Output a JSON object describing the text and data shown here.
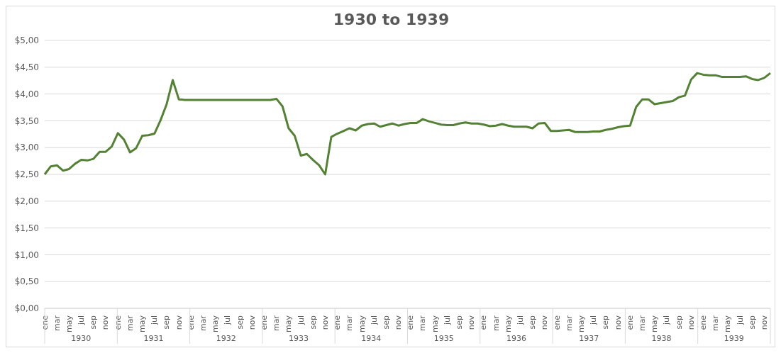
{
  "chart_data": {
    "type": "line",
    "title": "1930 to 1939",
    "categories": [
      "ene",
      null,
      "mar",
      null,
      "may",
      null,
      "jul",
      null,
      "sep",
      null,
      "nov",
      null,
      "ene",
      null,
      "mar",
      null,
      "may",
      null,
      "jul",
      null,
      "sep",
      null,
      "nov",
      null,
      "ene",
      null,
      "mar",
      null,
      "may",
      null,
      "jul",
      null,
      "sep",
      null,
      "nov",
      null,
      "ene",
      null,
      "mar",
      null,
      "may",
      null,
      "jul",
      null,
      "sep",
      null,
      "nov",
      null,
      "ene",
      null,
      "mar",
      null,
      "may",
      null,
      "jul",
      null,
      "sep",
      null,
      "nov",
      null,
      "ene",
      null,
      "mar",
      null,
      "may",
      null,
      "jul",
      null,
      "sep",
      null,
      "nov",
      null,
      "ene",
      null,
      "mar",
      null,
      "may",
      null,
      "jul",
      null,
      "sep",
      null,
      "nov",
      null,
      "ene",
      null,
      "mar",
      null,
      "may",
      null,
      "jul",
      null,
      "sep",
      null,
      "nov",
      null,
      "ene",
      null,
      "mar",
      null,
      "may",
      null,
      "jul",
      null,
      "sep",
      null,
      "nov",
      null,
      "ene",
      null,
      "mar",
      null,
      "may",
      null,
      "jul",
      null,
      "sep",
      null,
      "nov",
      null
    ],
    "series": [
      {
        "color": "#548235",
        "values": [
          2.5,
          2.65,
          2.67,
          2.57,
          2.6,
          2.7,
          2.77,
          2.76,
          2.79,
          2.92,
          2.92,
          3.02,
          3.27,
          3.15,
          2.91,
          2.99,
          3.22,
          3.23,
          3.26,
          3.51,
          3.81,
          4.26,
          3.9,
          3.89,
          3.89,
          3.89,
          3.89,
          3.89,
          3.89,
          3.89,
          3.89,
          3.89,
          3.89,
          3.89,
          3.89,
          3.89,
          3.89,
          3.89,
          3.91,
          3.77,
          3.36,
          3.22,
          2.85,
          2.88,
          2.77,
          2.67,
          2.5,
          3.2,
          3.26,
          3.31,
          3.36,
          3.32,
          3.41,
          3.44,
          3.45,
          3.39,
          3.42,
          3.45,
          3.41,
          3.44,
          3.46,
          3.46,
          3.53,
          3.49,
          3.46,
          3.43,
          3.42,
          3.42,
          3.45,
          3.47,
          3.45,
          3.45,
          3.43,
          3.4,
          3.41,
          3.44,
          3.41,
          3.39,
          3.39,
          3.39,
          3.36,
          3.45,
          3.46,
          3.31,
          3.31,
          3.32,
          3.33,
          3.29,
          3.29,
          3.29,
          3.3,
          3.3,
          3.33,
          3.35,
          3.38,
          3.4,
          3.41,
          3.76,
          3.9,
          3.9,
          3.81,
          3.83,
          3.85,
          3.87,
          3.94,
          3.97,
          4.27,
          4.39,
          4.36,
          4.35,
          4.35,
          4.32,
          4.32,
          4.32,
          4.32,
          4.33,
          4.28,
          4.26,
          4.3,
          4.39
        ]
      }
    ],
    "ylim": [
      0,
      5
    ],
    "yticks": [
      {
        "value": 0,
        "label": "$0,00"
      },
      {
        "value": 0.5,
        "label": "$0,50"
      },
      {
        "value": 1,
        "label": "$1,00"
      },
      {
        "value": 1.5,
        "label": "$1,50"
      },
      {
        "value": 2,
        "label": "$2,00"
      },
      {
        "value": 2.5,
        "label": "$2,50"
      },
      {
        "value": 3,
        "label": "$3,00"
      },
      {
        "value": 3.5,
        "label": "$3,50"
      },
      {
        "value": 4,
        "label": "$4,00"
      },
      {
        "value": 4.5,
        "label": "$4,50"
      },
      {
        "value": 5,
        "label": "$5,00"
      }
    ],
    "grid": "y",
    "marker": "none",
    "line_style": "solid",
    "annotations": [
      "1930",
      "1931",
      "1932",
      "1933",
      "1934",
      "1935",
      "1936",
      "1937",
      "1938",
      "1939"
    ]
  }
}
